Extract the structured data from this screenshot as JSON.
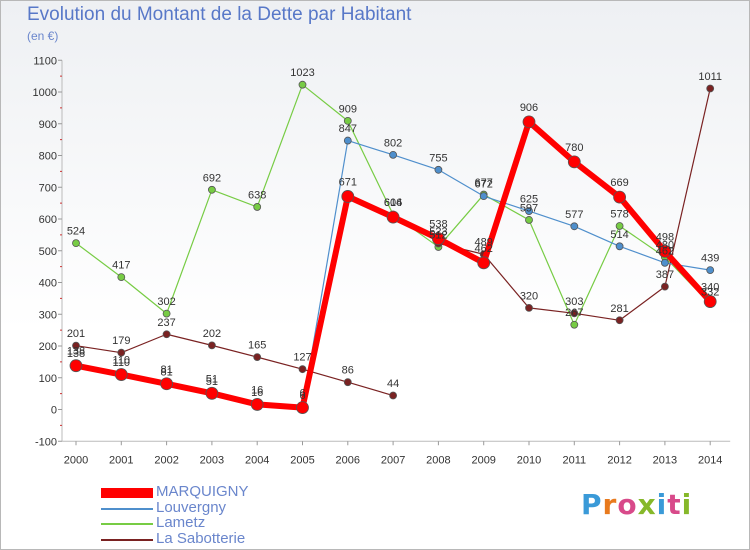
{
  "title": "Evolution du Montant de la Dette par Habitant",
  "subtitle": "(en €)",
  "logo": {
    "text": "Proxiti",
    "colors": [
      "#3a9ad8",
      "#e87a1e",
      "#86b82a",
      "#d84a8a"
    ]
  },
  "chart_data": {
    "type": "line",
    "title": "Evolution du Montant de la Dette par Habitant",
    "subtitle": "(en €)",
    "x": [
      "2000",
      "2001",
      "2002",
      "2003",
      "2004",
      "2005",
      "2006",
      "2007",
      "2008",
      "2009",
      "2010",
      "2011",
      "2012",
      "2013",
      "2014"
    ],
    "ylim": [
      -100,
      1100
    ],
    "yticks": [
      -100,
      0,
      100,
      200,
      300,
      400,
      500,
      600,
      700,
      800,
      900,
      1000,
      1100
    ],
    "grid": false,
    "legend_position": "bottom-left",
    "series": [
      {
        "name": "MARQUIGNY",
        "color": "#ff0000",
        "values": [
          138,
          110,
          81,
          51,
          16,
          6,
          671,
          606,
          538,
          462,
          906,
          780,
          669,
          498,
          340
        ]
      },
      {
        "name": "Louvergny",
        "color": "#4f8fcc",
        "values": [
          138,
          110,
          81,
          51,
          16,
          6,
          847,
          802,
          755,
          672,
          625,
          577,
          514,
          462,
          439
        ]
      },
      {
        "name": "Lametz",
        "color": "#77cc44",
        "values": [
          524,
          417,
          302,
          692,
          638,
          1023,
          909,
          614,
          512,
          677,
          597,
          267,
          578,
          480,
          332
        ]
      },
      {
        "name": "La Sabotterie",
        "color": "#7a2222",
        "values": [
          201,
          179,
          237,
          202,
          165,
          127,
          86,
          44,
          523,
          489,
          320,
          303,
          281,
          387,
          1011
        ]
      }
    ]
  }
}
